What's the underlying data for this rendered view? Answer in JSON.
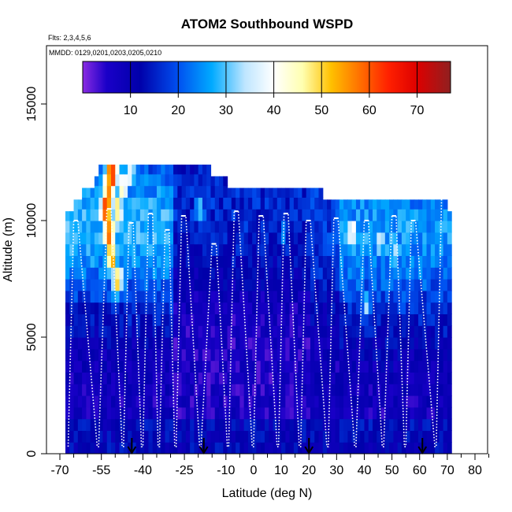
{
  "chart_data": {
    "type": "heatmap",
    "title": "ATOM2 Southbound WSPD",
    "flights_note": "Flts: 2,3,4,5,6",
    "dates_note": "MMDD: 0129,0201,0203,0205,0210",
    "xlabel": "Latitude (deg N)",
    "ylabel": "Altitude (m)",
    "xlim": [
      -70,
      85
    ],
    "ylim": [
      0,
      17500
    ],
    "x_ticks": [
      -70,
      -55,
      -40,
      -25,
      -10,
      0,
      10,
      20,
      30,
      40,
      50,
      60,
      70,
      80
    ],
    "x_tick_labels": [
      "-70",
      "-55",
      "-40",
      "-25",
      "-10",
      "0",
      "10",
      "20",
      "30",
      "40",
      "50",
      "60",
      "70",
      "80"
    ],
    "x_minor_ticks": [
      -65,
      -60,
      -50,
      -45,
      -35,
      -30,
      -20,
      -15,
      -5,
      5,
      15,
      25,
      35,
      45,
      55,
      65,
      75,
      85
    ],
    "y_ticks": [
      0,
      5000,
      10000,
      15000
    ],
    "y_tick_labels": [
      "0",
      "5000",
      "10000",
      "15000"
    ],
    "colorbar": {
      "min": 0,
      "max": 77,
      "ticks": [
        10,
        20,
        30,
        40,
        50,
        60,
        70
      ],
      "tick_labels": [
        "10",
        "20",
        "30",
        "40",
        "50",
        "60",
        "70"
      ],
      "stops": [
        {
          "v": 0,
          "c": "#8a2be2"
        },
        {
          "v": 5,
          "c": "#1a00c8"
        },
        {
          "v": 12,
          "c": "#0000aa"
        },
        {
          "v": 20,
          "c": "#0050f0"
        },
        {
          "v": 27,
          "c": "#00aaff"
        },
        {
          "v": 34,
          "c": "#bfe6ff"
        },
        {
          "v": 40,
          "c": "#ffffff"
        },
        {
          "v": 46,
          "c": "#ffffb0"
        },
        {
          "v": 52,
          "c": "#ffc000"
        },
        {
          "v": 58,
          "c": "#ff7000"
        },
        {
          "v": 64,
          "c": "#ff2000"
        },
        {
          "v": 70,
          "c": "#dd0000"
        },
        {
          "v": 77,
          "c": "#902020"
        }
      ]
    },
    "top_strips": [
      {
        "x0": -56,
        "x1": -15,
        "ytop": 12400
      },
      {
        "x0": -58,
        "x1": -10,
        "ytop": 11900
      },
      {
        "x0": -62,
        "x1": 25,
        "ytop": 11400
      },
      {
        "x0": -65,
        "x1": 70,
        "ytop": 10900
      },
      {
        "x0": -68,
        "x1": 71,
        "ytop": 10400
      }
    ],
    "hot_spots": [
      {
        "lat": -52,
        "alt": 12000,
        "wspd": 68
      },
      {
        "lat": -53,
        "alt": 11500,
        "wspd": 60
      },
      {
        "lat": -54,
        "alt": 10500,
        "wspd": 65
      },
      {
        "lat": -53,
        "alt": 9500,
        "wspd": 60
      },
      {
        "lat": -52,
        "alt": 8500,
        "wspd": 55
      },
      {
        "lat": -50,
        "alt": 7500,
        "wspd": 50
      },
      {
        "lat": -50,
        "alt": 10500,
        "wspd": 48
      },
      {
        "lat": -48,
        "alt": 11500,
        "wspd": 45
      },
      {
        "lat": -45,
        "alt": 12000,
        "wspd": 38
      },
      {
        "lat": 35,
        "alt": 9500,
        "wspd": 40
      },
      {
        "lat": 45,
        "alt": 9000,
        "wspd": 36
      },
      {
        "lat": 50,
        "alt": 8500,
        "wspd": 34
      },
      {
        "lat": 40,
        "alt": 6500,
        "wspd": 32
      },
      {
        "lat": 55,
        "alt": 10000,
        "wspd": 30
      },
      {
        "lat": -20,
        "alt": 10500,
        "wspd": 28
      },
      {
        "lat": 10,
        "alt": 9500,
        "wspd": 22
      },
      {
        "lat": -40,
        "alt": 7000,
        "wspd": 22
      }
    ],
    "flight_profiles": [
      {
        "lat": -67,
        "lat_top": -65,
        "top": 10000
      },
      {
        "lat": -56,
        "lat_top": -53,
        "top": 10500
      },
      {
        "lat": -47,
        "lat_top": -45,
        "top": 9900
      },
      {
        "lat": -40,
        "lat_top": -38,
        "top": 10300
      },
      {
        "lat": -34,
        "lat_top": -32,
        "top": 9600
      },
      {
        "lat": -28,
        "lat_top": -26,
        "top": 10200
      },
      {
        "lat": -19,
        "lat_top": -15,
        "top": 9000
      },
      {
        "lat": -9,
        "lat_top": -7,
        "top": 10400
      },
      {
        "lat": 0,
        "lat_top": 2,
        "top": 10200
      },
      {
        "lat": 9,
        "lat_top": 11,
        "top": 10300
      },
      {
        "lat": 17,
        "lat_top": 19,
        "top": 10000
      },
      {
        "lat": 27,
        "lat_top": 29,
        "top": 10100
      },
      {
        "lat": 37,
        "lat_top": 40,
        "top": 10000
      },
      {
        "lat": 47,
        "lat_top": 50,
        "top": 10200
      },
      {
        "lat": 55,
        "lat_top": 57,
        "top": 10000
      },
      {
        "lat": 66,
        "lat_top": 68,
        "top": 11300
      }
    ],
    "airport_markers": [
      -44,
      -18,
      20,
      61
    ]
  }
}
